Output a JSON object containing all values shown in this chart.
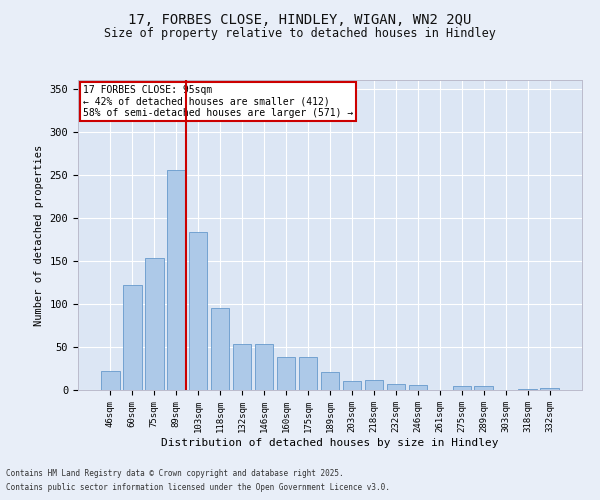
{
  "title_line1": "17, FORBES CLOSE, HINDLEY, WIGAN, WN2 2QU",
  "title_line2": "Size of property relative to detached houses in Hindley",
  "xlabel": "Distribution of detached houses by size in Hindley",
  "ylabel": "Number of detached properties",
  "categories": [
    "46sqm",
    "60sqm",
    "75sqm",
    "89sqm",
    "103sqm",
    "118sqm",
    "132sqm",
    "146sqm",
    "160sqm",
    "175sqm",
    "189sqm",
    "203sqm",
    "218sqm",
    "232sqm",
    "246sqm",
    "261sqm",
    "275sqm",
    "289sqm",
    "303sqm",
    "318sqm",
    "332sqm"
  ],
  "values": [
    22,
    122,
    153,
    255,
    184,
    95,
    53,
    53,
    38,
    38,
    21,
    10,
    12,
    7,
    6,
    0,
    5,
    5,
    0,
    1,
    2
  ],
  "bar_color": "#adc9e8",
  "bar_edge_color": "#6699cc",
  "fig_background_color": "#e8eef8",
  "ax_background_color": "#dce6f4",
  "vline_x_index": 3,
  "vline_color": "#cc0000",
  "annotation_title": "17 FORBES CLOSE: 95sqm",
  "annotation_line1": "← 42% of detached houses are smaller (412)",
  "annotation_line2": "58% of semi-detached houses are larger (571) →",
  "annotation_box_color": "#cc0000",
  "ylim": [
    0,
    360
  ],
  "yticks": [
    0,
    50,
    100,
    150,
    200,
    250,
    300,
    350
  ],
  "footnote_line1": "Contains HM Land Registry data © Crown copyright and database right 2025.",
  "footnote_line2": "Contains public sector information licensed under the Open Government Licence v3.0."
}
